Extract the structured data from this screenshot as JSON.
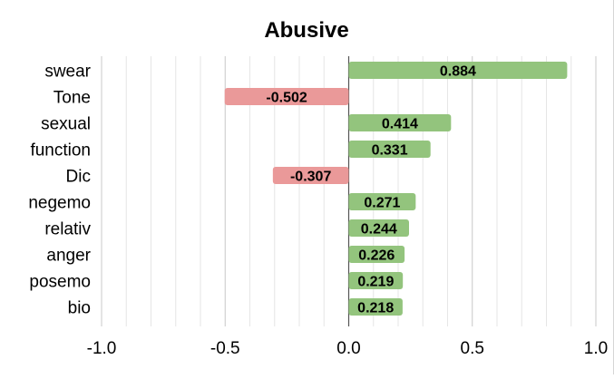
{
  "chart_data": {
    "type": "bar",
    "orientation": "horizontal",
    "title": "Abusive",
    "xlabel": "",
    "ylabel": "",
    "categories": [
      "swear",
      "Tone",
      "sexual",
      "function",
      "Dic",
      "negemo",
      "relativ",
      "anger",
      "posemo",
      "bio"
    ],
    "values": [
      0.884,
      -0.502,
      0.414,
      0.331,
      -0.307,
      0.271,
      0.244,
      0.226,
      0.219,
      0.218
    ],
    "value_labels": [
      "0.884",
      "-0.502",
      "0.414",
      "0.331",
      "-0.307",
      "0.271",
      "0.244",
      "0.226",
      "0.219",
      "0.218"
    ],
    "xlim": [
      -1.0,
      1.0
    ],
    "xticks": [
      -1.0,
      -0.5,
      0.0,
      0.5,
      1.0
    ],
    "xtick_labels": [
      "-1.0",
      "-0.5",
      "0.0",
      "0.5",
      "1.0"
    ],
    "minor_grid_step": 0.1,
    "grid": true,
    "legend": "none",
    "colors": {
      "positive": "#93c47d",
      "negative": "#ea9999",
      "zero_line": "#555555",
      "major_grid": "#c8c8c8",
      "minor_grid": "#e6e6e6"
    }
  }
}
